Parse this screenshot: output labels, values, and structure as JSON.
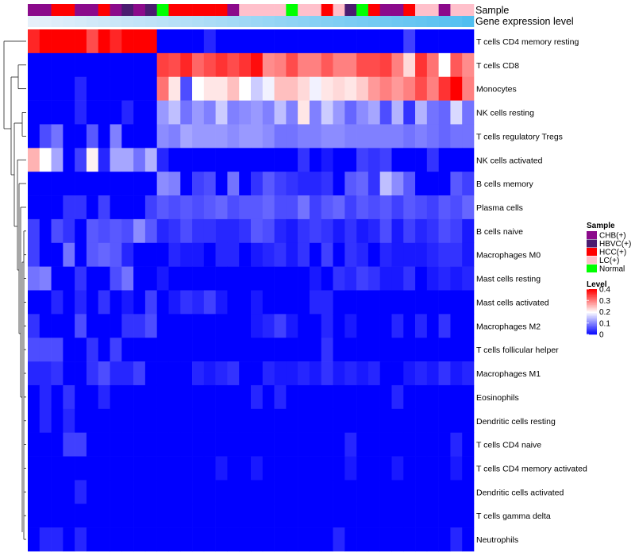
{
  "chart_data": {
    "type": "heatmap",
    "title": "",
    "annotation_tracks": {
      "sample_label": "Sample",
      "gene_label": "Gene expression level"
    },
    "sample_colors": {
      "CHB(+)": "#8b0a8b",
      "HBVC(+)": "#4b1c70",
      "HCC(+)": "#ff0000",
      "LC(+)": "#ffc0cb",
      "Normal": "#00ff00"
    },
    "samples": [
      "CHB(+)",
      "CHB(+)",
      "HCC(+)",
      "HCC(+)",
      "CHB(+)",
      "CHB(+)",
      "HCC(+)",
      "CHB(+)",
      "HBVC(+)",
      "CHB(+)",
      "HBVC(+)",
      "Normal",
      "HCC(+)",
      "HCC(+)",
      "HCC(+)",
      "HCC(+)",
      "HCC(+)",
      "CHB(+)",
      "LC(+)",
      "LC(+)",
      "LC(+)",
      "LC(+)",
      "Normal",
      "LC(+)",
      "LC(+)",
      "HCC(+)",
      "LC(+)",
      "HBVC(+)",
      "Normal",
      "HCC(+)",
      "CHB(+)",
      "CHB(+)",
      "HCC(+)",
      "LC(+)",
      "LC(+)",
      "CHB(+)",
      "LC(+)",
      "LC(+)"
    ],
    "gene_levels": [
      0.02,
      0.03,
      0.04,
      0.05,
      0.06,
      0.07,
      0.08,
      0.09,
      0.1,
      0.11,
      0.12,
      0.13,
      0.14,
      0.15,
      0.16,
      0.17,
      0.18,
      0.19,
      0.2,
      0.21,
      0.22,
      0.23,
      0.24,
      0.25,
      0.26,
      0.27,
      0.28,
      0.29,
      0.3,
      0.31,
      0.32,
      0.33,
      0.34,
      0.35,
      0.36,
      0.37,
      0.38,
      0.4
    ],
    "rows": [
      "T cells CD4 memory resting",
      "T cells CD8",
      "Monocytes",
      "NK cells resting",
      "T cells regulatory  Tregs",
      "NK cells activated",
      "B cells memory",
      "Plasma cells",
      "B cells naive",
      "Macrophages M0",
      "Mast cells resting",
      "Mast cells activated",
      "Macrophages M2",
      "T cells follicular helper",
      "Macrophages M1",
      "Eosinophils",
      "Dendritic cells resting",
      "T cells CD4 naive",
      "T cells CD4 memory activated",
      "Dendritic cells activated",
      "T cells gamma delta",
      "Neutrophils"
    ],
    "values": [
      [
        0.37,
        0.4,
        0.4,
        0.4,
        0.4,
        0.34,
        0.4,
        0.37,
        0.4,
        0.4,
        0.4,
        0,
        0,
        0,
        0,
        0.03,
        0,
        0,
        0,
        0,
        0,
        0,
        0,
        0,
        0,
        0,
        0,
        0,
        0,
        0,
        0,
        0,
        0.05,
        0,
        0,
        0,
        0,
        0
      ],
      [
        0,
        0,
        0,
        0,
        0,
        0,
        0,
        0,
        0,
        0,
        0,
        0.35,
        0.34,
        0.37,
        0.32,
        0.34,
        0.36,
        0.34,
        0.36,
        0.39,
        0.29,
        0.3,
        0.34,
        0.3,
        0.3,
        0.33,
        0.3,
        0.3,
        0.34,
        0.34,
        0.35,
        0.3,
        0.23,
        0.36,
        0.31,
        0.2,
        0.33,
        0.29
      ],
      [
        0,
        0,
        0,
        0,
        0.03,
        0,
        0,
        0,
        0,
        0,
        0,
        0.31,
        0.22,
        0.06,
        0.2,
        0.22,
        0.22,
        0.25,
        0.2,
        0.16,
        0.19,
        0.25,
        0.25,
        0.23,
        0.19,
        0.22,
        0.23,
        0.22,
        0.24,
        0.28,
        0.3,
        0.28,
        0.3,
        0.34,
        0.3,
        0.36,
        0.4,
        0.3
      ],
      [
        0,
        0,
        0,
        0,
        0.03,
        0,
        0,
        0,
        0.03,
        0,
        0,
        0.12,
        0.15,
        0.09,
        0.12,
        0.1,
        0.16,
        0.1,
        0.11,
        0.12,
        0.1,
        0.15,
        0.1,
        0.22,
        0.1,
        0.16,
        0.12,
        0.08,
        0.11,
        0.13,
        0.06,
        0.14,
        0.04,
        0.14,
        0.09,
        0.08,
        0.17,
        0.09
      ],
      [
        0,
        0.06,
        0.09,
        0,
        0,
        0.07,
        0,
        0.1,
        0,
        0,
        0,
        0.11,
        0.1,
        0.13,
        0.12,
        0.12,
        0.12,
        0.11,
        0.12,
        0.12,
        0.11,
        0.09,
        0.09,
        0.1,
        0.1,
        0.11,
        0.11,
        0.1,
        0.1,
        0.1,
        0.1,
        0.1,
        0.09,
        0.1,
        0.09,
        0.08,
        0.09,
        0.09
      ],
      [
        0.26,
        0.2,
        0.13,
        0,
        0.05,
        0.21,
        0.03,
        0.13,
        0.13,
        0.09,
        0.14,
        0.03,
        0,
        0,
        0,
        0,
        0,
        0,
        0,
        0,
        0,
        0,
        0,
        0.04,
        0,
        0.02,
        0,
        0,
        0.05,
        0.04,
        0.05,
        0,
        0,
        0,
        0.04,
        0,
        0,
        0
      ],
      [
        0,
        0,
        0,
        0,
        0,
        0,
        0,
        0,
        0,
        0,
        0,
        0.11,
        0.1,
        0,
        0.05,
        0.06,
        0,
        0.09,
        0,
        0.04,
        0.07,
        0.05,
        0.04,
        0.03,
        0.03,
        0.04,
        0,
        0.07,
        0.08,
        0.04,
        0.15,
        0.11,
        0.07,
        0,
        0,
        0,
        0.07,
        0.05
      ],
      [
        0,
        0,
        0,
        0.04,
        0.04,
        0,
        0.05,
        0,
        0,
        0,
        0.05,
        0.07,
        0.06,
        0.07,
        0.06,
        0.07,
        0.08,
        0.06,
        0.07,
        0.07,
        0.08,
        0.06,
        0.06,
        0.09,
        0.05,
        0.07,
        0.08,
        0.05,
        0.07,
        0.06,
        0.07,
        0.05,
        0.07,
        0.06,
        0.05,
        0.07,
        0.06,
        0.08
      ],
      [
        0.05,
        0,
        0.06,
        0.04,
        0,
        0.07,
        0.06,
        0.07,
        0.06,
        0.11,
        0.07,
        0.03,
        0.04,
        0.06,
        0.04,
        0.04,
        0.03,
        0.03,
        0.04,
        0.07,
        0.06,
        0.03,
        0.02,
        0.04,
        0.05,
        0.04,
        0.02,
        0.04,
        0.02,
        0.03,
        0.06,
        0.02,
        0.05,
        0.03,
        0.04,
        0.06,
        0.05,
        0.02
      ],
      [
        0.05,
        0,
        0,
        0.09,
        0,
        0.07,
        0.08,
        0.07,
        0.03,
        0,
        0,
        0,
        0.03,
        0.02,
        0.02,
        0,
        0.03,
        0.03,
        0,
        0.02,
        0.03,
        0.04,
        0.02,
        0.04,
        0,
        0.05,
        0,
        0.04,
        0.03,
        0,
        0.03,
        0.02,
        0.02,
        0.02,
        0.03,
        0.04,
        0.04,
        0.02
      ],
      [
        0.09,
        0.1,
        0,
        0,
        0.04,
        0,
        0,
        0.06,
        0.09,
        0,
        0,
        0.02,
        0,
        0,
        0,
        0,
        0,
        0,
        0,
        0,
        0,
        0,
        0,
        0,
        0.02,
        0,
        0.04,
        0.03,
        0.05,
        0.04,
        0.02,
        0.02,
        0.04,
        0,
        0.02,
        0.03,
        0.02,
        0.03
      ],
      [
        0,
        0,
        0.03,
        0,
        0.03,
        0,
        0.04,
        0,
        0.02,
        0,
        0.05,
        0,
        0.02,
        0.04,
        0.03,
        0.05,
        0.02,
        0,
        0,
        0.02,
        0,
        0,
        0,
        0,
        0.03,
        0.03,
        0,
        0,
        0,
        0,
        0,
        0,
        0,
        0,
        0,
        0,
        0,
        0
      ],
      [
        0.04,
        0,
        0,
        0,
        0.06,
        0,
        0,
        0,
        0.04,
        0.04,
        0.06,
        0,
        0,
        0,
        0,
        0,
        0,
        0,
        0,
        0.02,
        0.03,
        0.05,
        0.02,
        0,
        0,
        0.03,
        0,
        0.02,
        0,
        0,
        0,
        0.03,
        0,
        0.03,
        0,
        0.04,
        0,
        0
      ],
      [
        0.06,
        0.06,
        0.06,
        0,
        0,
        0.04,
        0,
        0.05,
        0,
        0,
        0,
        0,
        0,
        0,
        0,
        0,
        0,
        0,
        0,
        0,
        0,
        0,
        0,
        0,
        0,
        0.04,
        0,
        0,
        0,
        0,
        0,
        0,
        0,
        0,
        0,
        0,
        0,
        0
      ],
      [
        0.03,
        0.03,
        0.04,
        0,
        0,
        0.04,
        0.06,
        0.03,
        0.03,
        0.05,
        0,
        0,
        0,
        0,
        0.03,
        0.02,
        0.03,
        0.04,
        0,
        0,
        0.03,
        0.02,
        0.02,
        0.03,
        0.02,
        0.04,
        0.02,
        0.03,
        0.02,
        0.03,
        0,
        0,
        0.02,
        0.03,
        0.02,
        0.04,
        0.02,
        0.03
      ],
      [
        0,
        0.03,
        0,
        0.04,
        0,
        0,
        0.03,
        0,
        0,
        0,
        0,
        0,
        0,
        0,
        0,
        0,
        0,
        0,
        0,
        0.03,
        0,
        0.03,
        0,
        0,
        0,
        0,
        0,
        0,
        0,
        0,
        0,
        0.03,
        0,
        0,
        0,
        0,
        0,
        0
      ],
      [
        0,
        0.03,
        0,
        0.03,
        0,
        0,
        0,
        0,
        0,
        0,
        0,
        0,
        0,
        0,
        0,
        0,
        0,
        0,
        0,
        0,
        0,
        0,
        0,
        0,
        0,
        0,
        0,
        0,
        0,
        0,
        0,
        0,
        0,
        0,
        0,
        0,
        0,
        0
      ],
      [
        0,
        0,
        0,
        0.05,
        0.05,
        0,
        0,
        0,
        0,
        0,
        0,
        0,
        0,
        0,
        0,
        0,
        0,
        0,
        0,
        0,
        0,
        0,
        0,
        0,
        0,
        0,
        0,
        0.03,
        0,
        0,
        0,
        0,
        0,
        0,
        0,
        0,
        0.03,
        0
      ],
      [
        0,
        0,
        0,
        0,
        0,
        0,
        0,
        0,
        0,
        0,
        0,
        0,
        0,
        0,
        0,
        0,
        0.02,
        0,
        0,
        0.02,
        0,
        0,
        0,
        0,
        0,
        0,
        0,
        0.02,
        0,
        0,
        0,
        0.02,
        0,
        0,
        0,
        0,
        0.02,
        0
      ],
      [
        0,
        0,
        0,
        0,
        0.03,
        0,
        0,
        0,
        0,
        0,
        0,
        0,
        0,
        0,
        0,
        0,
        0,
        0,
        0,
        0,
        0,
        0,
        0,
        0,
        0,
        0,
        0,
        0,
        0,
        0,
        0,
        0,
        0,
        0,
        0,
        0,
        0,
        0
      ],
      [
        0,
        0,
        0,
        0,
        0,
        0,
        0,
        0,
        0,
        0,
        0,
        0,
        0,
        0,
        0,
        0,
        0,
        0,
        0,
        0,
        0,
        0,
        0,
        0,
        0,
        0,
        0,
        0,
        0,
        0,
        0,
        0,
        0,
        0,
        0,
        0,
        0,
        0
      ],
      [
        0,
        0.03,
        0.03,
        0,
        0.03,
        0,
        0,
        0,
        0,
        0,
        0,
        0,
        0,
        0,
        0,
        0,
        0,
        0,
        0,
        0,
        0,
        0,
        0,
        0,
        0,
        0,
        0.03,
        0,
        0,
        0,
        0,
        0,
        0,
        0,
        0,
        0,
        0.03,
        0
      ]
    ],
    "legend_sample": {
      "title": "Sample",
      "entries": [
        "CHB(+)",
        "HBVC(+)",
        "HCC(+)",
        "LC(+)",
        "Normal"
      ]
    },
    "legend_level": {
      "title": "Level",
      "ticks": [
        "0.4",
        "0.3",
        "0.2",
        "0.1",
        "0"
      ],
      "tick_values": [
        0.4,
        0.3,
        0.2,
        0.1,
        0
      ],
      "min": 0,
      "max": 0.4
    },
    "colorscale": {
      "low": "#0000ff",
      "mid": "#ffffff",
      "high": "#ff0000",
      "midpoint": 0.2
    }
  }
}
